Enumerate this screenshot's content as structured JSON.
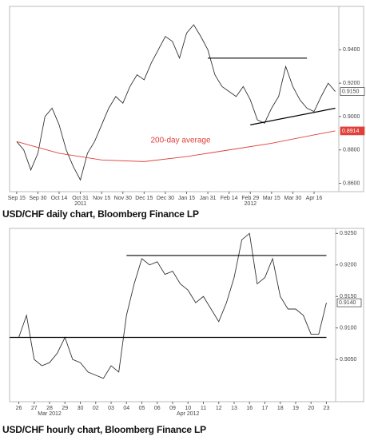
{
  "chart_data": [
    {
      "type": "line",
      "title": "USD/CHF daily chart, Bloomberg Finance LP",
      "xlim": [
        -1,
        45.5
      ],
      "xticks": [
        {
          "value": 0,
          "label": "Sep 15"
        },
        {
          "value": 3,
          "label": "Sep 30"
        },
        {
          "value": 6,
          "label": "Oct 14"
        },
        {
          "value": 9,
          "label": "Oct 31"
        },
        {
          "value": 12,
          "label": "Nov 15"
        },
        {
          "value": 15,
          "label": "Nov 30"
        },
        {
          "value": 18,
          "label": "Dec 15"
        },
        {
          "value": 21,
          "label": "Dec 30"
        },
        {
          "value": 24,
          "label": "Jan 15"
        },
        {
          "value": 27,
          "label": "Jan 31"
        },
        {
          "value": 30,
          "label": "Feb 14"
        },
        {
          "value": 33,
          "label": "Feb 29"
        },
        {
          "value": 36,
          "label": "Mar 15"
        },
        {
          "value": 39,
          "label": "Mar 30"
        },
        {
          "value": 42,
          "label": "Apr 16"
        }
      ],
      "x_group_labels": [
        {
          "value": 9,
          "label": "2011"
        },
        {
          "value": 33,
          "label": "2012"
        }
      ],
      "ylim": [
        0.855,
        0.966
      ],
      "yticks": [
        {
          "value": 0.94,
          "label": "0.9400"
        },
        {
          "value": 0.92,
          "label": "0.9200"
        },
        {
          "value": 0.9,
          "label": "0.9000"
        },
        {
          "value": 0.88,
          "label": "0.8800"
        },
        {
          "value": 0.86,
          "label": "0.8600"
        }
      ],
      "series": [
        {
          "color": "#333333",
          "x": [
            0,
            1,
            2,
            3,
            4,
            5,
            6,
            7,
            8,
            9,
            10,
            11,
            12,
            13,
            14,
            15,
            16,
            17,
            18,
            19,
            20,
            21,
            22,
            23,
            24,
            25,
            26,
            27,
            28,
            29,
            30,
            31,
            32,
            33,
            34,
            35,
            36,
            37,
            38,
            39,
            40,
            41,
            42,
            43,
            44,
            45
          ],
          "values": [
            0.885,
            0.88,
            0.868,
            0.878,
            0.9,
            0.905,
            0.895,
            0.88,
            0.87,
            0.862,
            0.878,
            0.885,
            0.895,
            0.905,
            0.912,
            0.908,
            0.918,
            0.925,
            0.922,
            0.932,
            0.94,
            0.948,
            0.945,
            0.935,
            0.95,
            0.955,
            0.948,
            0.94,
            0.925,
            0.918,
            0.915,
            0.912,
            0.918,
            0.91,
            0.898,
            0.896,
            0.905,
            0.912,
            0.93,
            0.918,
            0.91,
            0.905,
            0.903,
            0.912,
            0.92,
            0.915
          ],
          "last_label": {
            "value": 0.915,
            "label": "0.9150"
          }
        },
        {
          "color": "#e0403a",
          "x": [
            0,
            6,
            12,
            18,
            24,
            30,
            36,
            42,
            45
          ],
          "values": [
            0.885,
            0.878,
            0.874,
            0.873,
            0.876,
            0.88,
            0.884,
            0.889,
            0.8914
          ],
          "last_label": {
            "value": 0.8914,
            "label": "0.8914"
          }
        }
      ],
      "annotation": {
        "text": "200-day average",
        "color": "#e0403a"
      },
      "trend_lines": [
        {
          "x": [
            27,
            41
          ],
          "y": [
            0.935,
            0.935
          ]
        },
        {
          "x": [
            33,
            45
          ],
          "y": [
            0.895,
            0.905
          ]
        }
      ]
    },
    {
      "type": "line",
      "title": "USD/CHF hourly chart, Bloomberg Finance LP",
      "xlim": [
        -0.6,
        20.6
      ],
      "xticks": [
        {
          "value": 0,
          "label": "26"
        },
        {
          "value": 1,
          "label": "27"
        },
        {
          "value": 2,
          "label": "28"
        },
        {
          "value": 3,
          "label": "29"
        },
        {
          "value": 4,
          "label": "30"
        },
        {
          "value": 5,
          "label": "02"
        },
        {
          "value": 6,
          "label": "03"
        },
        {
          "value": 7,
          "label": "04"
        },
        {
          "value": 8,
          "label": "05"
        },
        {
          "value": 9,
          "label": "06"
        },
        {
          "value": 10,
          "label": "09"
        },
        {
          "value": 11,
          "label": "10"
        },
        {
          "value": 12,
          "label": "11"
        },
        {
          "value": 13,
          "label": "12"
        },
        {
          "value": 14,
          "label": "13"
        },
        {
          "value": 15,
          "label": "16"
        },
        {
          "value": 16,
          "label": "17"
        },
        {
          "value": 17,
          "label": "18"
        },
        {
          "value": 18,
          "label": "19"
        },
        {
          "value": 19,
          "label": "20"
        },
        {
          "value": 20,
          "label": "23"
        }
      ],
      "x_group_labels": [
        {
          "value": 2,
          "label": "Mar 2012"
        },
        {
          "value": 11,
          "label": "Apr 2012"
        }
      ],
      "ylim": [
        0.8983,
        0.9258
      ],
      "yticks": [
        {
          "value": 0.925,
          "label": "0.9250"
        },
        {
          "value": 0.92,
          "label": "0.9200"
        },
        {
          "value": 0.915,
          "label": "0.9150"
        },
        {
          "value": 0.91,
          "label": "0.9100"
        },
        {
          "value": 0.905,
          "label": "0.9050"
        }
      ],
      "series": [
        {
          "color": "#333333",
          "x": [
            0,
            0.5,
            1,
            1.5,
            2,
            2.5,
            3,
            3.5,
            4,
            4.5,
            5,
            5.5,
            6,
            6.5,
            7,
            7.5,
            8,
            8.5,
            9,
            9.5,
            10,
            10.5,
            11,
            11.5,
            12,
            12.5,
            13,
            13.5,
            14,
            14.5,
            15,
            15.5,
            16,
            16.5,
            17,
            17.5,
            18,
            18.5,
            19,
            19.5,
            20
          ],
          "values": [
            0.9085,
            0.912,
            0.905,
            0.904,
            0.9045,
            0.906,
            0.9085,
            0.905,
            0.9045,
            0.903,
            0.9025,
            0.902,
            0.904,
            0.903,
            0.912,
            0.917,
            0.921,
            0.92,
            0.9205,
            0.9185,
            0.919,
            0.917,
            0.916,
            0.914,
            0.915,
            0.913,
            0.911,
            0.914,
            0.918,
            0.924,
            0.925,
            0.917,
            0.918,
            0.921,
            0.915,
            0.913,
            0.913,
            0.912,
            0.909,
            0.909,
            0.914
          ],
          "last_label": {
            "value": 0.914,
            "label": "0.9140"
          }
        }
      ],
      "trend_lines": [
        {
          "x": [
            7,
            20
          ],
          "y": [
            0.9215,
            0.9215
          ]
        },
        {
          "x": [
            -0.6,
            20
          ],
          "y": [
            0.9085,
            0.9085
          ]
        }
      ]
    }
  ]
}
